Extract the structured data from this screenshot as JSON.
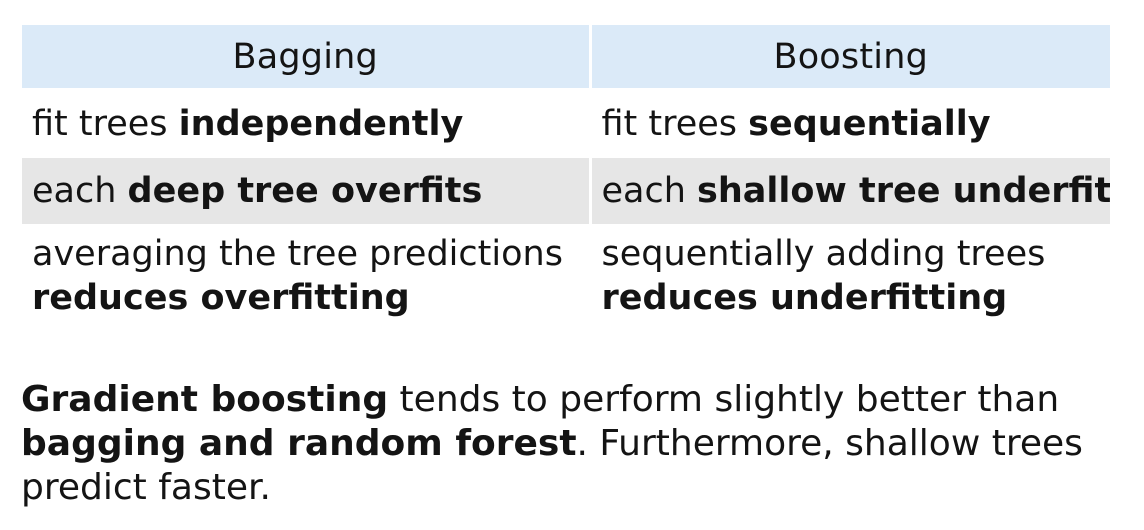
{
  "table": {
    "headers": {
      "left": "Bagging",
      "right": "Boosting"
    },
    "rows": [
      {
        "left": {
          "pre": "fit trees ",
          "bold": "independently",
          "post": ""
        },
        "right": {
          "pre": "fit trees ",
          "bold": "sequentially",
          "post": ""
        }
      },
      {
        "left": {
          "pre": "each ",
          "bold": "deep tree overfits",
          "post": ""
        },
        "right": {
          "pre": "each ",
          "bold": "shallow tree underfits",
          "post": ""
        }
      },
      {
        "left": {
          "line1": "averaging the tree predictions",
          "line2": "reduces overfitting"
        },
        "right": {
          "line1": "sequentially adding trees",
          "line2": "reduces underfitting"
        }
      }
    ]
  },
  "summary": {
    "part1_bold": "Gradient boosting",
    "part2": " tends to perform slightly better than",
    "part3_bold": "bagging and random forest",
    "part4": ". Furthermore, shallow trees",
    "part5": "predict faster."
  }
}
